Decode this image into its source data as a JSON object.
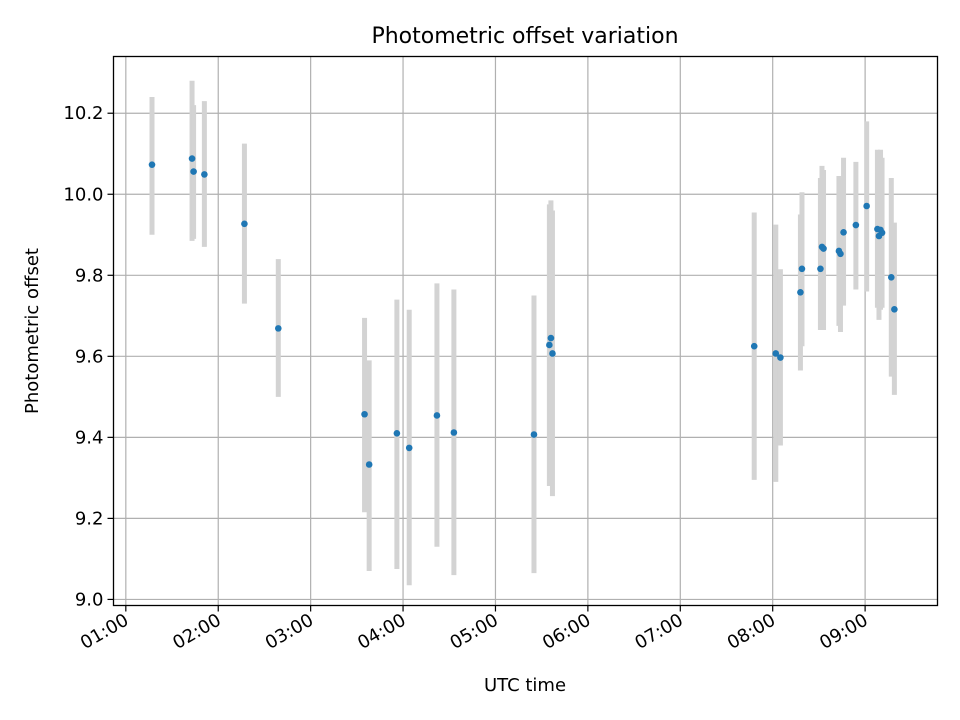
{
  "chart_data": {
    "type": "scatter",
    "title": "Photometric offset variation",
    "xlabel": "UTC time",
    "ylabel": "Photometric offset",
    "xlim": [
      "00:52",
      "09:47"
    ],
    "ylim": [
      8.985,
      10.34
    ],
    "grid": true,
    "x_ticks": [
      "01:00",
      "02:00",
      "03:00",
      "04:00",
      "05:00",
      "06:00",
      "07:00",
      "08:00",
      "09:00"
    ],
    "y_ticks": [
      "9.0",
      "9.2",
      "9.4",
      "9.6",
      "9.8",
      "10.0",
      "10.2"
    ],
    "series": [
      {
        "point_color": "#1f77b4",
        "errorbar_color": "#d3d3d3",
        "points": [
          {
            "x": "01:17",
            "y": 10.073,
            "low": 9.9,
            "high": 10.24
          },
          {
            "x": "01:43",
            "y": 10.088,
            "low": 9.885,
            "high": 10.28
          },
          {
            "x": "01:44",
            "y": 10.056,
            "low": 9.89,
            "high": 10.22
          },
          {
            "x": "01:51",
            "y": 10.049,
            "low": 9.87,
            "high": 10.23
          },
          {
            "x": "02:17",
            "y": 9.927,
            "low": 9.73,
            "high": 10.125
          },
          {
            "x": "02:39",
            "y": 9.669,
            "low": 9.5,
            "high": 9.84
          },
          {
            "x": "03:35",
            "y": 9.457,
            "low": 9.215,
            "high": 9.695
          },
          {
            "x": "03:38",
            "y": 9.333,
            "low": 9.07,
            "high": 9.59
          },
          {
            "x": "03:56",
            "y": 9.41,
            "low": 9.075,
            "high": 9.74
          },
          {
            "x": "04:04",
            "y": 9.374,
            "low": 9.035,
            "high": 9.715
          },
          {
            "x": "04:22",
            "y": 9.454,
            "low": 9.13,
            "high": 9.78
          },
          {
            "x": "04:33",
            "y": 9.412,
            "low": 9.06,
            "high": 9.765
          },
          {
            "x": "05:25",
            "y": 9.407,
            "low": 9.065,
            "high": 9.75
          },
          {
            "x": "05:35",
            "y": 9.628,
            "low": 9.28,
            "high": 9.975
          },
          {
            "x": "05:36",
            "y": 9.645,
            "low": 9.3,
            "high": 9.985
          },
          {
            "x": "05:37",
            "y": 9.607,
            "low": 9.255,
            "high": 9.96
          },
          {
            "x": "07:48",
            "y": 9.625,
            "low": 9.295,
            "high": 9.955
          },
          {
            "x": "08:02",
            "y": 9.607,
            "low": 9.29,
            "high": 9.925
          },
          {
            "x": "08:05",
            "y": 9.597,
            "low": 9.38,
            "high": 9.815
          },
          {
            "x": "08:18",
            "y": 9.758,
            "low": 9.565,
            "high": 9.95
          },
          {
            "x": "08:19",
            "y": 9.816,
            "low": 9.625,
            "high": 10.005
          },
          {
            "x": "08:31",
            "y": 9.816,
            "low": 9.665,
            "high": 10.04
          },
          {
            "x": "08:32",
            "y": 9.87,
            "low": 9.67,
            "high": 10.07
          },
          {
            "x": "08:33",
            "y": 9.866,
            "low": 9.665,
            "high": 10.06
          },
          {
            "x": "08:43",
            "y": 9.86,
            "low": 9.675,
            "high": 10.045
          },
          {
            "x": "08:44",
            "y": 9.853,
            "low": 9.66,
            "high": 10.04
          },
          {
            "x": "08:46",
            "y": 9.906,
            "low": 9.725,
            "high": 10.09
          },
          {
            "x": "08:54",
            "y": 9.924,
            "low": 9.765,
            "high": 10.08
          },
          {
            "x": "09:01",
            "y": 9.971,
            "low": 9.76,
            "high": 10.18
          },
          {
            "x": "09:08",
            "y": 9.914,
            "low": 9.72,
            "high": 10.11
          },
          {
            "x": "09:09",
            "y": 9.897,
            "low": 9.69,
            "high": 10.1
          },
          {
            "x": "09:10",
            "y": 9.912,
            "low": 9.715,
            "high": 10.11
          },
          {
            "x": "09:11",
            "y": 9.905,
            "low": 9.72,
            "high": 10.09
          },
          {
            "x": "09:17",
            "y": 9.795,
            "low": 9.55,
            "high": 10.04
          },
          {
            "x": "09:19",
            "y": 9.716,
            "low": 9.505,
            "high": 9.93
          }
        ]
      }
    ]
  }
}
